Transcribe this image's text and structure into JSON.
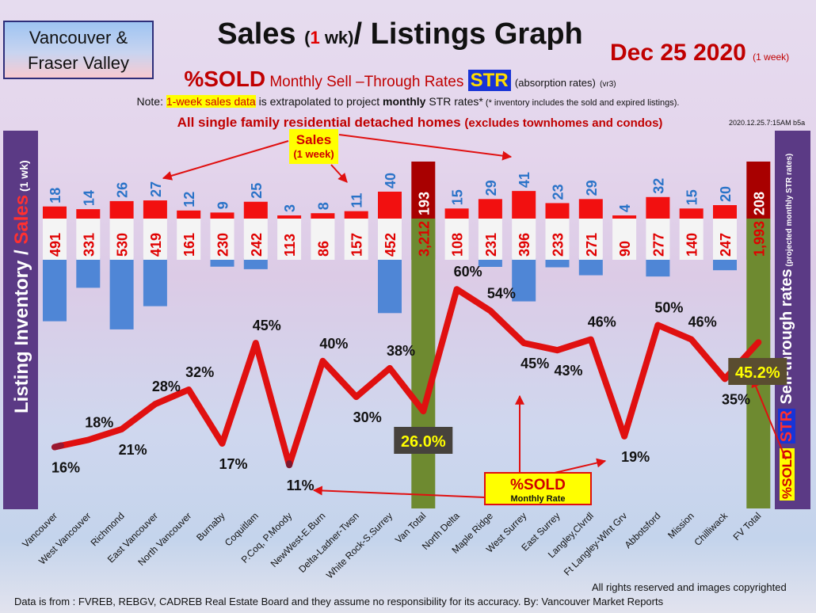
{
  "header": {
    "region_line1": "Vancouver &",
    "region_line2": "Fraser Valley",
    "title_main": "Sales",
    "title_paren_open": "(",
    "title_num": "1",
    "title_wk": " wk)",
    "title_rest": "/ Listings Graph",
    "date": "Dec 25  2020",
    "date_note": "(1 week)",
    "sold_big": "%SOLD",
    "sold_text": "Monthly Sell –Through Rates",
    "str_label": "STR",
    "absorption": "(absorption rates)",
    "version": "(vr3)",
    "note_prefix": "Note: ",
    "note_highlight": "1-week sales data",
    "note_mid": " is extrapolated to project ",
    "note_bold": "monthly",
    "note_after": " STR rates*",
    "note_small": " (* inventory includes the sold and expired listings).",
    "subtitle_main": "All single family residential detached homes",
    "subtitle_small": "(excludes townhomes and condos)",
    "timestamp": "2020.12.25.7:15AM b5a"
  },
  "left_axis": {
    "title_a": "Listing Inventory / ",
    "title_b": "Sales",
    "title_c": " (1 wk)"
  },
  "right_axis": {
    "sold": "%SOLD",
    "str": "STR",
    "title": " Sell-through rates",
    "note": " (projected monthly STR rates)"
  },
  "annotations": {
    "sales_callout_line1": "Sales",
    "sales_callout_line2": "(1 week)",
    "sold_callout_line1": "%SOLD",
    "sold_callout_line2": "Monthly Rate"
  },
  "footer": {
    "copyright": "All rights reserved and  images copyrighted",
    "source": "Data is from : FVREB, REBGV, CADREB Real Estate Board and they assume no responsibility for its accuracy. By: Vancouver Market Reports"
  },
  "colors": {
    "sales_bar": "#f21010",
    "inventory_bar": "#4f86d6",
    "total_bar": "#6e8a30",
    "total_sales_bar": "#a80000",
    "str_line": "#e01010",
    "sales_label": "#2a73c8",
    "inventory_label": "#e00000"
  },
  "chart_data": {
    "type": "bar",
    "categories": [
      "Vancouver",
      "West Vancouver",
      "Richmond",
      "East Vancouver",
      "North Vancouver",
      "Burnaby",
      "Coquitlam",
      "P.Coq, P.Moody",
      "NewWest-E.Burn",
      "Delta-Ladner-Twsn",
      "White Rock-S.Surrey",
      "Van Total",
      "North Delta",
      "Maple Ridge",
      "West Surrey",
      "East Surrey",
      "Langley,Clvrdl",
      "Ft Langley-Wlnt Grv",
      "Abbotsford",
      "Mission",
      "Chilliwack",
      "FV Total"
    ],
    "series": [
      {
        "values": [
          18,
          14,
          26,
          27,
          12,
          9,
          25,
          3,
          8,
          11,
          40,
          193,
          15,
          29,
          41,
          23,
          29,
          4,
          32,
          15,
          20,
          208
        ]
      },
      {
        "values": [
          491,
          331,
          530,
          419,
          161,
          230,
          242,
          113,
          86,
          157,
          452,
          3212,
          108,
          231,
          396,
          233,
          271,
          90,
          277,
          140,
          247,
          1993
        ]
      },
      {
        "values": [
          16,
          18,
          21,
          28,
          32,
          17,
          45,
          11,
          40,
          30,
          38,
          26.0,
          60,
          54,
          45,
          43,
          46,
          19,
          50,
          46,
          35,
          45.2
        ]
      }
    ],
    "sales_labels": [
      "18",
      "14",
      "26",
      "27",
      "12",
      "9",
      "25",
      "3",
      "8",
      "11",
      "40",
      "193",
      "15",
      "29",
      "41",
      "23",
      "29",
      "4",
      "32",
      "15",
      "20",
      "208"
    ],
    "inventory_labels": [
      "491",
      "331",
      "530",
      "419",
      "161",
      "230",
      "242",
      "113",
      "86",
      "157",
      "452",
      "3,212",
      "108",
      "231",
      "396",
      "233",
      "271",
      "90",
      "277",
      "140",
      "247",
      "1,993"
    ],
    "str_labels": [
      "16%",
      "18%",
      "21%",
      "28%",
      "32%",
      "17%",
      "45%",
      "11%",
      "40%",
      "30%",
      "38%",
      "26.0%",
      "60%",
      "54%",
      "45%",
      "43%",
      "46%",
      "19%",
      "50%",
      "46%",
      "35%",
      "45.2%"
    ],
    "totals_index": [
      11,
      21
    ]
  }
}
